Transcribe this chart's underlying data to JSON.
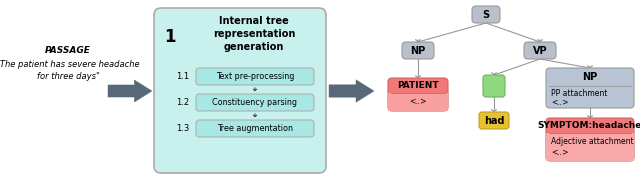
{
  "bg_color": "#ffffff",
  "passage_label": "PASSAGE",
  "passage_text": "\"The patient has severe headache\nfor three days\"",
  "box1_color": "#c8f0ec",
  "box1_border": "#aaaaaa",
  "box1_title": "Internal tree\nrepresentation\ngeneration",
  "box1_num": "1",
  "sub1_label": "1.1",
  "sub1_text": "Text pre-processing",
  "sub2_label": "1.2",
  "sub2_text": "Constituency parsing",
  "sub3_label": "1.3",
  "sub3_text": "Tree augmentation",
  "sub_box_color": "#a8e8e4",
  "sub_box_border": "#aaaaaa",
  "arrow_color": "#586878",
  "tree_node_color": "#b8c0cc",
  "tree_node_border": "#999999",
  "patient_box_top_color": "#f07878",
  "patient_box_border": "#cc6666",
  "patient_label": "PATIENT",
  "patient_sub": "<..>",
  "green_box_color": "#90d880",
  "green_box_border": "#70b060",
  "yellow_box_color": "#e8c030",
  "yellow_box_border": "#c0a020",
  "yellow_label": "had",
  "np_box_color": "#b8c4d4",
  "np_box_border": "#999999",
  "np_label": "NP",
  "np_sub1": "PP attachment",
  "np_sub2": "<..>",
  "symptom_top_color": "#f07878",
  "symptom_bot_color": "#f8a0a0",
  "symptom_box_border": "#cc6666",
  "symptom_label": "SYMPTOM:headache",
  "symptom_sub1": "Adjective attachment",
  "symptom_sub2": "<..>",
  "line_color": "#999999"
}
